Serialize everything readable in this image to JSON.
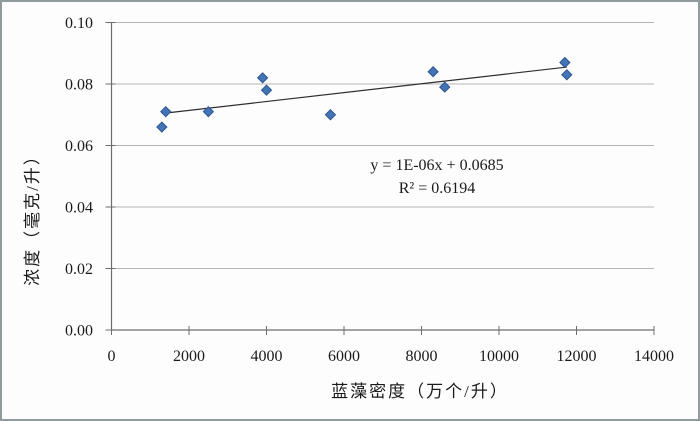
{
  "chart_data": {
    "type": "scatter",
    "xlabel": "蓝藻密度（万个/升）",
    "ylabel": "浓度（毫克/升）",
    "xlim": [
      0,
      14000
    ],
    "ylim": [
      0,
      0.1
    ],
    "xticks": [
      0,
      2000,
      4000,
      6000,
      8000,
      10000,
      12000,
      14000
    ],
    "yticks": [
      0,
      0.02,
      0.04,
      0.06,
      0.08,
      0.1
    ],
    "ytick_decimals": 2,
    "grid": "horizontal",
    "legend": "none",
    "series": [
      {
        "marker": "diamond",
        "marker_color": "#4474b4",
        "marker_edge_color": "#2c5693",
        "points": [
          {
            "x": 1300,
            "y": 0.066
          },
          {
            "x": 1400,
            "y": 0.071
          },
          {
            "x": 2500,
            "y": 0.071
          },
          {
            "x": 3900,
            "y": 0.082
          },
          {
            "x": 4000,
            "y": 0.078
          },
          {
            "x": 5650,
            "y": 0.07
          },
          {
            "x": 8300,
            "y": 0.084
          },
          {
            "x": 8600,
            "y": 0.079
          },
          {
            "x": 11700,
            "y": 0.087
          },
          {
            "x": 11750,
            "y": 0.083
          }
        ]
      }
    ],
    "trendline": {
      "equation": "y = 1E-06x + 0.0685",
      "r2": "R² = 0.6194",
      "x_start": 1300,
      "y_start": 0.0704,
      "x_end": 11750,
      "y_end": 0.0855,
      "color": "#2e2e2e"
    }
  },
  "style_colors": {
    "axis": "#6e6e6e",
    "gridline": "#b5b5b5",
    "figure_border": "#8f9b9c",
    "background": "#fdfdfd"
  }
}
